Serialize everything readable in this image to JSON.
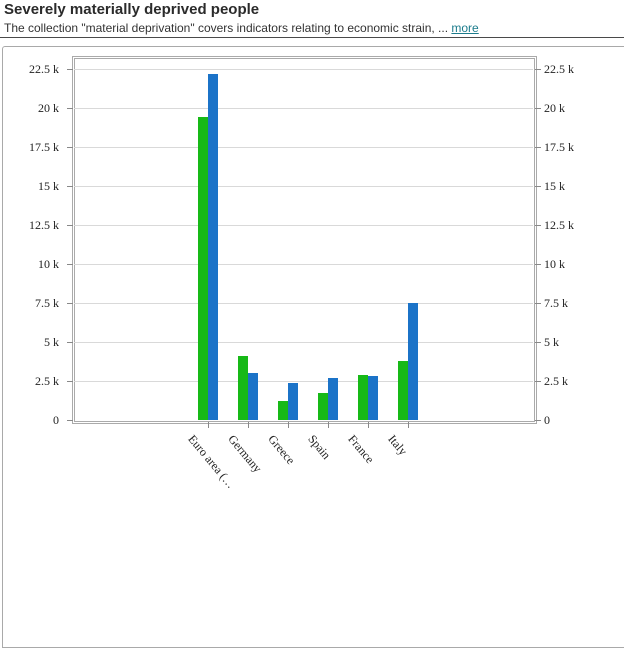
{
  "header": {
    "title": "Severely materially deprived people",
    "subtitle_prefix": "The collection \"material deprivation\" covers indicators relating to economic strain, ... ",
    "more_label": "more"
  },
  "chart_data": {
    "type": "bar",
    "title": "Severely materially deprived people",
    "categories": [
      "Euro area (…",
      "Germany",
      "Greece",
      "Spain",
      "France",
      "Italy"
    ],
    "series": [
      {
        "name": "green-series",
        "color": "#17b917",
        "values": [
          19400,
          4100,
          1200,
          1700,
          2900,
          3800
        ]
      },
      {
        "name": "blue-series",
        "color": "#1b73c8",
        "values": [
          22200,
          3000,
          2400,
          2700,
          2800,
          7500
        ]
      }
    ],
    "xlabel": "",
    "ylabel": "",
    "ylim": [
      0,
      22500
    ],
    "ytick_step": 2500,
    "ytick_labels_top_to_bottom": [
      "22.5 k",
      "20 k",
      "17.5 k",
      "15 k",
      "12.5 k",
      "10 k",
      "7.5 k",
      "5 k",
      "2.5 k",
      "0"
    ],
    "grid": true,
    "axes_mirrored": true,
    "legend_position": "not-visible"
  },
  "colors": {
    "bar_green": "#17b917",
    "bar_blue": "#1b73c8",
    "gridline": "#d9d9d9",
    "plot_border": "#aaaaaa",
    "widget_border": "#a9a9a9",
    "tick": "#888888",
    "link": "#1c7c8c",
    "title_text": "#2b2b2b",
    "body_text": "#333333",
    "axis_text": "#222222",
    "header_rule": "#4a4a4a"
  }
}
